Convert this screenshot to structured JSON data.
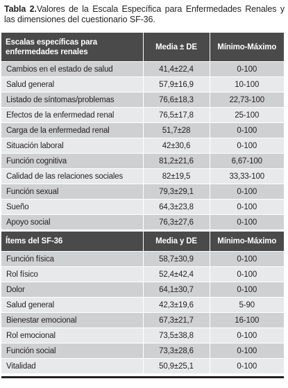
{
  "caption": {
    "label": "Tabla 2.",
    "text": "Valores de la Escala Específica para Enfermedades Renales y las dimensiones del cuestionario SF-36."
  },
  "section1": {
    "headers": [
      "Escalas específicas para enfermedades renales",
      "Media ± DE",
      "Mínimo-Máximo"
    ],
    "rows": [
      [
        "Cambios en el estado de salud",
        "41,4±22,4",
        "0-100"
      ],
      [
        "Salud general",
        "57,9±16,9",
        "10-100"
      ],
      [
        "Listado de síntomas/problemas",
        "76,6±18,3",
        "22,73-100"
      ],
      [
        "Efectos de la enfermedad renal",
        "76,5±17,8",
        "25-100"
      ],
      [
        "Carga de la enfermedad renal",
        "51,7±28",
        "0-100"
      ],
      [
        "Situación laboral",
        "42±30,6",
        "0-100"
      ],
      [
        "Función cognitiva",
        "81,2±21,6",
        "6,67-100"
      ],
      [
        "Calidad de las relaciones sociales",
        "82±19,5",
        "33,33-100"
      ],
      [
        "Función sexual",
        "79,3±29,1",
        "0-100"
      ],
      [
        "Sueño",
        "64,3±23,8",
        "0-100"
      ],
      [
        "Apoyo social",
        "76,3±27,6",
        "0-100"
      ]
    ]
  },
  "section2": {
    "headers": [
      "Ítems del SF-36",
      "Media y DE",
      "Mínimo-Máximo"
    ],
    "rows": [
      [
        "Función física",
        "58,7±30,9",
        "0-100"
      ],
      [
        "Rol físico",
        "52,4±42,4",
        "0-100"
      ],
      [
        "Dolor",
        "64,1±30,7",
        "0-100"
      ],
      [
        "Salud general",
        "42,3±19,6",
        "5-90"
      ],
      [
        "Bienestar emocional",
        "67,3±21,7",
        "16-100"
      ],
      [
        "Rol emocional",
        "73,5±38,8",
        "0-100"
      ],
      [
        "Función social",
        "73,3±28,6",
        "0-100"
      ],
      [
        "Vitalidad",
        "50,9±25,1",
        "0-100"
      ]
    ]
  }
}
